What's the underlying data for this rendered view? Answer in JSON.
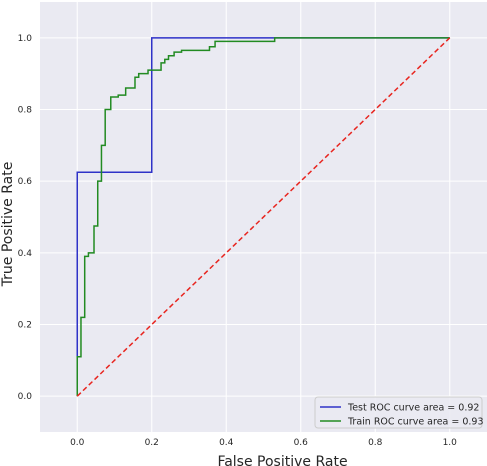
{
  "chart_data": {
    "type": "line",
    "title": "",
    "xlabel": "False Positive Rate",
    "ylabel": "True Positive Rate",
    "xlim": [
      -0.1,
      1.1
    ],
    "ylim": [
      -0.1,
      1.1
    ],
    "xticks": [
      "0.0",
      "0.2",
      "0.4",
      "0.6",
      "0.8",
      "1.0"
    ],
    "yticks": [
      "0.0",
      "0.2",
      "0.4",
      "0.6",
      "0.8",
      "1.0"
    ],
    "grid": true,
    "legend_position": "lower-right",
    "series": [
      {
        "name": "Test ROC curve area = 0.92",
        "color": "#2f32c8",
        "step": true,
        "points": [
          [
            0.0,
            0.0
          ],
          [
            0.0,
            0.625
          ],
          [
            0.2,
            0.625
          ],
          [
            0.2,
            1.0
          ],
          [
            1.0,
            1.0
          ]
        ]
      },
      {
        "name": "Train ROC curve area = 0.93",
        "color": "#228b22",
        "step": true,
        "points": [
          [
            0.0,
            0.0
          ],
          [
            0.0,
            0.11
          ],
          [
            0.01,
            0.11
          ],
          [
            0.01,
            0.22
          ],
          [
            0.02,
            0.22
          ],
          [
            0.02,
            0.39
          ],
          [
            0.03,
            0.39
          ],
          [
            0.03,
            0.4
          ],
          [
            0.045,
            0.4
          ],
          [
            0.045,
            0.475
          ],
          [
            0.055,
            0.475
          ],
          [
            0.055,
            0.6
          ],
          [
            0.065,
            0.6
          ],
          [
            0.065,
            0.7
          ],
          [
            0.075,
            0.7
          ],
          [
            0.075,
            0.8
          ],
          [
            0.09,
            0.8
          ],
          [
            0.09,
            0.835
          ],
          [
            0.11,
            0.835
          ],
          [
            0.11,
            0.84
          ],
          [
            0.13,
            0.84
          ],
          [
            0.13,
            0.86
          ],
          [
            0.155,
            0.86
          ],
          [
            0.155,
            0.89
          ],
          [
            0.165,
            0.89
          ],
          [
            0.165,
            0.9
          ],
          [
            0.19,
            0.9
          ],
          [
            0.19,
            0.91
          ],
          [
            0.225,
            0.91
          ],
          [
            0.225,
            0.93
          ],
          [
            0.235,
            0.93
          ],
          [
            0.235,
            0.94
          ],
          [
            0.245,
            0.94
          ],
          [
            0.245,
            0.95
          ],
          [
            0.26,
            0.95
          ],
          [
            0.26,
            0.96
          ],
          [
            0.28,
            0.96
          ],
          [
            0.28,
            0.965
          ],
          [
            0.355,
            0.965
          ],
          [
            0.355,
            0.975
          ],
          [
            0.37,
            0.975
          ],
          [
            0.37,
            0.99
          ],
          [
            0.53,
            0.99
          ],
          [
            0.53,
            1.0
          ],
          [
            1.0,
            1.0
          ]
        ]
      },
      {
        "name": "",
        "color": "#e8251f",
        "dashed": true,
        "points": [
          [
            0.0,
            0.0
          ],
          [
            1.0,
            1.0
          ]
        ]
      }
    ]
  }
}
